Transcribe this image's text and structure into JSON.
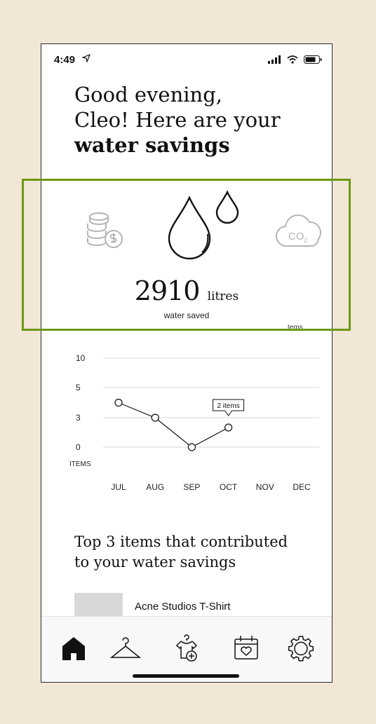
{
  "status": {
    "time": "4:49"
  },
  "greeting": {
    "line1": "Good evening,",
    "line2": "Cleo! Here are your",
    "line3": "water savings"
  },
  "savings": {
    "value": "2910",
    "unit": "litres",
    "caption": "water saved"
  },
  "items_ghost_label": "tems",
  "chart_data": {
    "type": "line",
    "categories": [
      "JUL",
      "AUG",
      "SEP",
      "OCT",
      "NOV",
      "DEC"
    ],
    "series": [
      {
        "values": [
          4,
          3,
          0,
          2,
          null,
          null
        ]
      }
    ],
    "ylabel": "ITEMS",
    "yticks": [
      "10",
      "5",
      "3",
      "0"
    ],
    "tooltip": {
      "category": "OCT",
      "label": "2 items"
    },
    "grid": true
  },
  "top_items": {
    "title_line1": "Top 3 items that contributed",
    "title_line2": "to your water savings",
    "items": [
      {
        "name": "Acne Studios T-Shirt"
      }
    ]
  },
  "tabs": [
    {
      "icon": "home-icon",
      "active": true
    },
    {
      "icon": "hanger-icon"
    },
    {
      "icon": "add-clothing-icon"
    },
    {
      "icon": "calendar-heart-icon"
    },
    {
      "icon": "settings-gear-icon"
    }
  ],
  "colors": {
    "highlight": "#6b9a12",
    "background": "#f2e6d6",
    "muted_icon": "#b5b5b5"
  }
}
